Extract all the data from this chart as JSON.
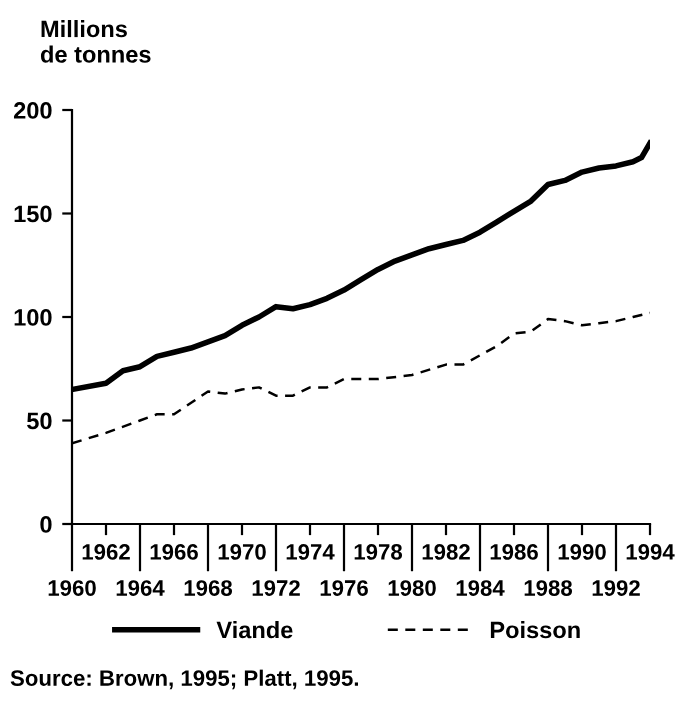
{
  "chart_data": {
    "type": "line",
    "ylabel": "Millions\nde tonnes",
    "xlim": [
      1960,
      1994
    ],
    "ylim": [
      0,
      200
    ],
    "yticks": [
      0,
      50,
      100,
      150,
      200
    ],
    "xticks": [
      1962,
      1966,
      1970,
      1974,
      1978,
      1982,
      1986,
      1990,
      1994
    ],
    "x2lim": [
      1960,
      1994
    ],
    "x2ticks": [
      1960,
      1964,
      1968,
      1972,
      1976,
      1980,
      1984,
      1988,
      1992
    ],
    "series": [
      {
        "name": "Viande",
        "color": "#000000",
        "line_style": "solid",
        "x": [
          1960,
          1962,
          1963,
          1964,
          1965,
          1966,
          1967,
          1968,
          1969,
          1970,
          1971,
          1972,
          1973,
          1974,
          1975,
          1976,
          1977,
          1978,
          1979,
          1980,
          1981,
          1982,
          1983,
          1984,
          1985,
          1986,
          1987,
          1988,
          1989,
          1990,
          1991,
          1992,
          1993,
          1993.5,
          1994
        ],
        "values": [
          65,
          68,
          74,
          76,
          81,
          83,
          85,
          88,
          91,
          96,
          100,
          105,
          104,
          106,
          109,
          113,
          118,
          123,
          127,
          130,
          133,
          135,
          137,
          141,
          146,
          151,
          156,
          164,
          166,
          170,
          172,
          173,
          175,
          177,
          184
        ]
      },
      {
        "name": "Poisson",
        "color": "#000000",
        "line_style": "dashed",
        "x": [
          1960,
          1962,
          1964,
          1965,
          1966,
          1968,
          1969,
          1970,
          1971,
          1972,
          1973,
          1974,
          1975,
          1976,
          1978,
          1980,
          1982,
          1983,
          1985,
          1986,
          1987,
          1988,
          1989,
          1990,
          1991,
          1992,
          1993,
          1994
        ],
        "values": [
          39,
          44,
          50,
          53,
          53,
          64,
          63,
          65,
          66,
          62,
          62,
          66,
          66,
          70,
          70,
          72,
          77,
          77,
          86,
          92,
          93,
          99,
          98,
          96,
          97,
          98,
          100,
          102
        ]
      }
    ],
    "legend": "bottom",
    "grid": false,
    "marker": "none",
    "annotations": [
      "Source: Brown, 1995; Platt, 1995."
    ]
  }
}
